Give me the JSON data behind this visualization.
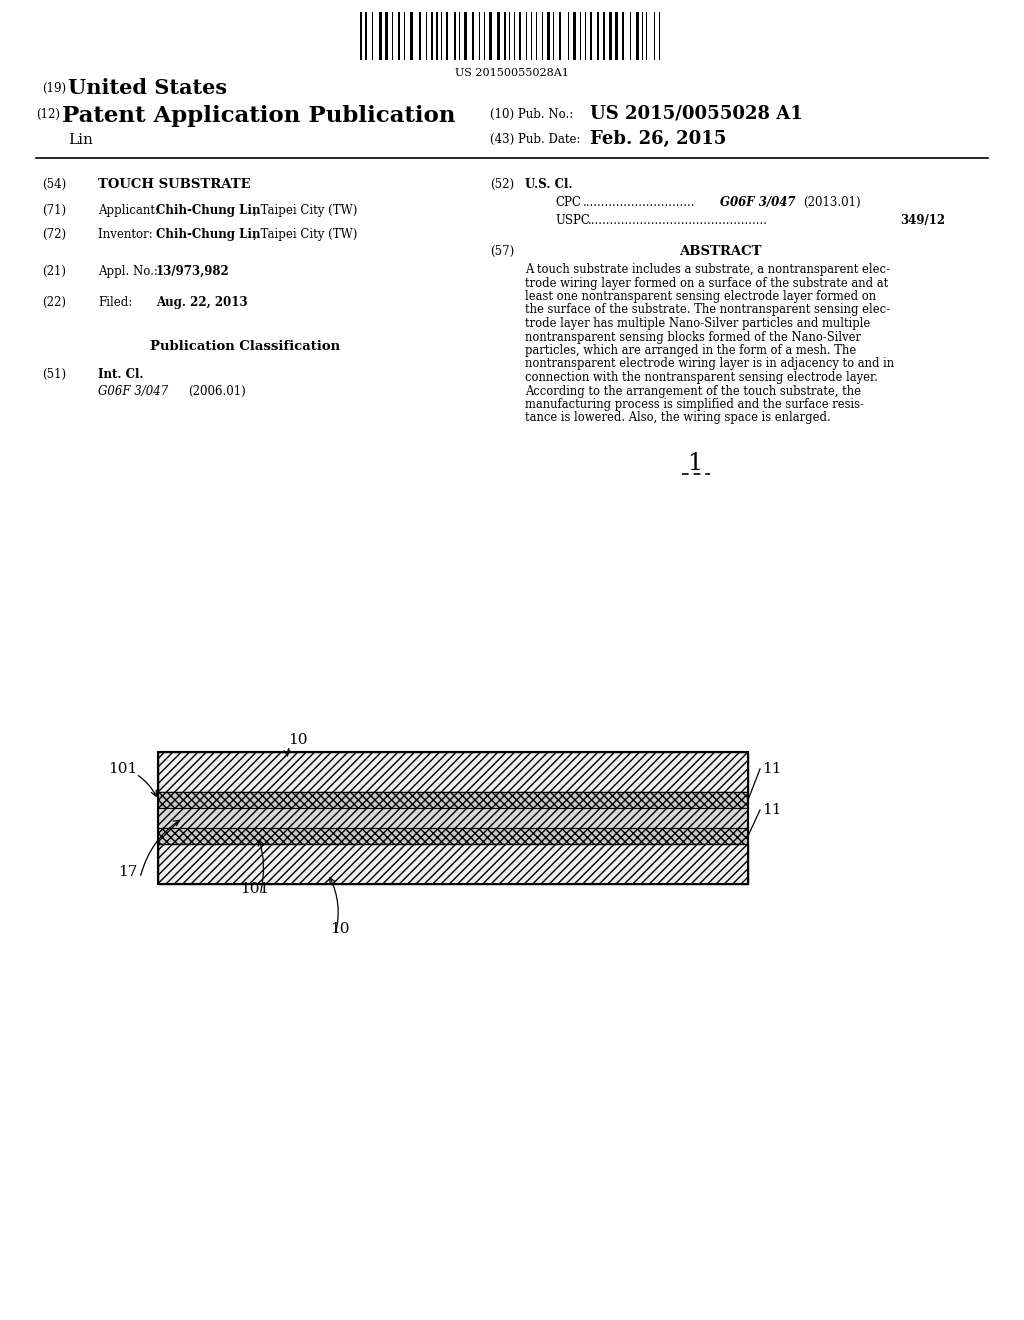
{
  "background_color": "#ffffff",
  "barcode_text": "US 20150055028A1",
  "fig_label": "1",
  "abstract_text": "A touch substrate includes a substrate, a nontransparent elec-trode wiring layer formed on a surface of the substrate and at least one nontransparent sensing electrode layer formed on the surface of the substrate. The nontransparent sensing elec-trode layer has multiple Nano-Silver particles and multiple nontransparent sensing blocks formed of the Nano-Silver particles, which are arranged in the form of a mesh. The nontransparent electrode wiring layer is in adjacency to and in connection with the nontransparent sensing electrode layer. According to the arrangement of the touch substrate, the manufacturing process is simplified and the surface resis-tance is lowered. Also, the wiring space is enlarged."
}
